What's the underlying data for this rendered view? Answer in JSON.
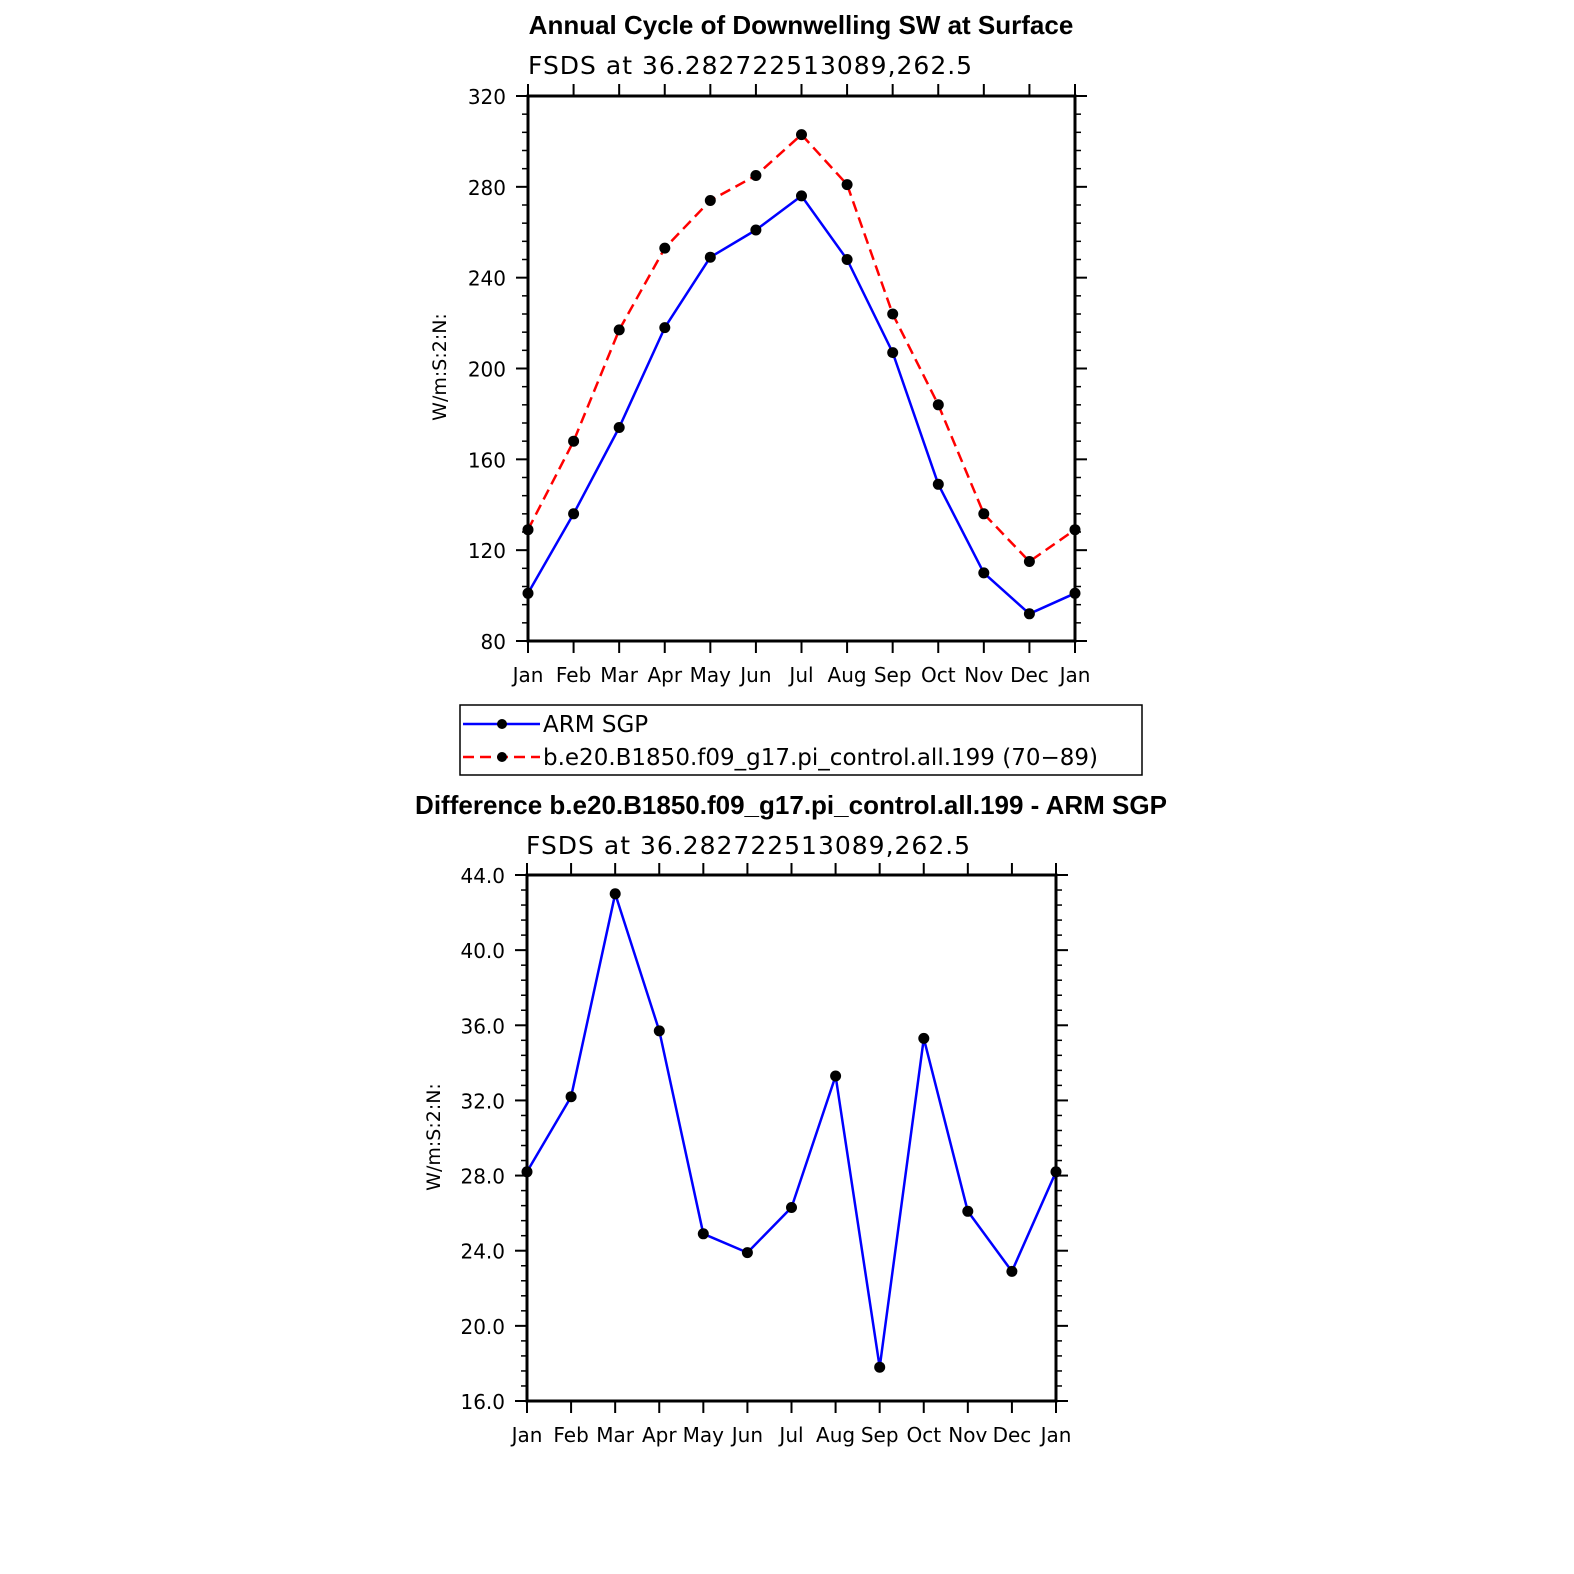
{
  "chart_data": [
    {
      "type": "line",
      "title": "Annual Cycle of Downwelling SW at Surface",
      "subtitle": "FSDS at 36.282722513089,262.5",
      "ylabel": "W/m:S:2:N:",
      "xlabel": "",
      "ylim": [
        80,
        320
      ],
      "yticks": [
        "80",
        "120",
        "160",
        "200",
        "240",
        "280",
        "320"
      ],
      "categories": [
        "Jan",
        "Feb",
        "Mar",
        "Apr",
        "May",
        "Jun",
        "Jul",
        "Aug",
        "Sep",
        "Oct",
        "Nov",
        "Dec",
        "Jan"
      ],
      "grid": false,
      "legend_position": "bottom",
      "series": [
        {
          "name": "ARM SGP",
          "color": "#0000ff",
          "dash": "solid",
          "values": [
            101,
            136,
            174,
            218,
            249,
            261,
            276,
            248,
            207,
            149,
            110,
            92,
            101
          ]
        },
        {
          "name": "b.e20.B1850.f09_g17.pi_control.all.199 (70−89)",
          "color": "#ff0000",
          "dash": "dashed",
          "values": [
            129,
            168,
            217,
            253,
            274,
            285,
            303,
            281,
            224,
            184,
            136,
            115,
            129
          ]
        }
      ]
    },
    {
      "type": "line",
      "title": "Difference b.e20.B1850.f09_g17.pi_control.all.199 - ARM SGP",
      "subtitle": "FSDS at 36.282722513089,262.5",
      "ylabel": "W/m:S:2:N:",
      "xlabel": "",
      "ylim": [
        16,
        44
      ],
      "yticks": [
        "16.0",
        "20.0",
        "24.0",
        "28.0",
        "32.0",
        "36.0",
        "40.0",
        "44.0"
      ],
      "categories": [
        "Jan",
        "Feb",
        "Mar",
        "Apr",
        "May",
        "Jun",
        "Jul",
        "Aug",
        "Sep",
        "Oct",
        "Nov",
        "Dec",
        "Jan"
      ],
      "grid": false,
      "series": [
        {
          "color": "#0000ff",
          "dash": "solid",
          "values": [
            28.2,
            32.2,
            43.0,
            35.7,
            24.9,
            23.9,
            26.3,
            33.3,
            17.8,
            35.3,
            26.1,
            22.9,
            28.2
          ]
        }
      ]
    }
  ]
}
